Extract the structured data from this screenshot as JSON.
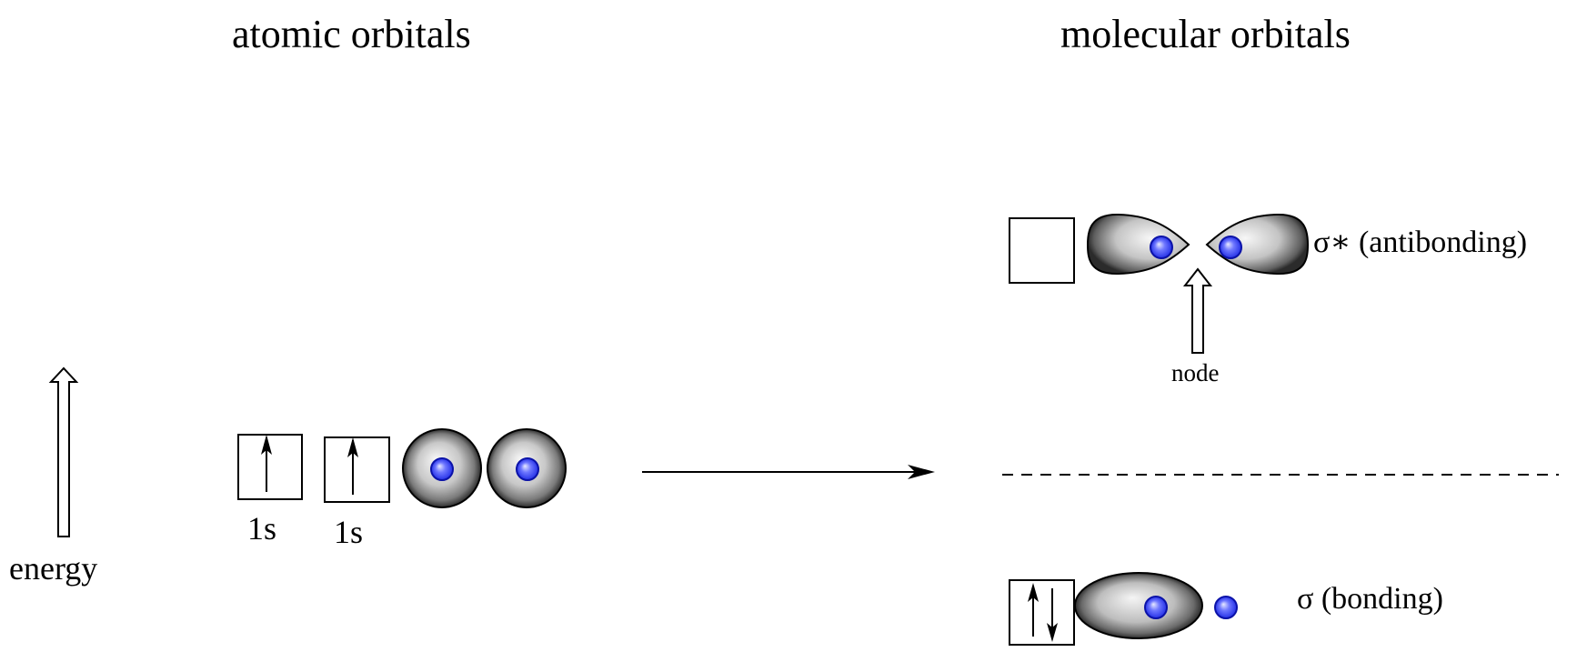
{
  "titles": {
    "atomic": "atomic orbitals",
    "molecular": "molecular orbitals"
  },
  "labels": {
    "energy": "energy",
    "orbital_1": "1s",
    "orbital_2": "1s",
    "node": "node",
    "antibonding": "σ∗ (antibonding)",
    "bonding": "σ (bonding)"
  },
  "colors": {
    "nucleus": "#2f3cff",
    "lobe_dark": "#2b2b2b",
    "lobe_light": "#f2f2f2",
    "line": "#000000"
  },
  "electrons": {
    "atomic_box_1": [
      "up"
    ],
    "atomic_box_2": [
      "up"
    ],
    "sigma_star_box": [],
    "sigma_box": [
      "up",
      "down"
    ]
  }
}
